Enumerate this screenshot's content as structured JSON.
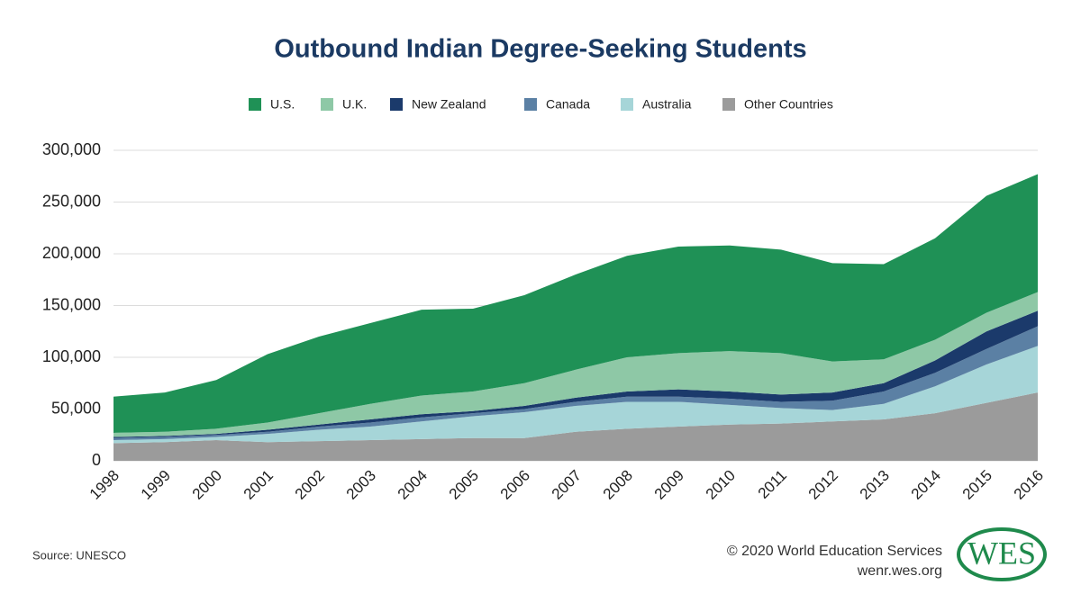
{
  "chart_data": {
    "type": "stacked-area",
    "title": "Outbound Indian Degree-Seeking Students",
    "categories": [
      "1998",
      "1999",
      "2000",
      "2001",
      "2002",
      "2003",
      "2004",
      "2005",
      "2006",
      "2007",
      "2008",
      "2009",
      "2010",
      "2011",
      "2012",
      "2013",
      "2014",
      "2015",
      "2016"
    ],
    "series": [
      {
        "name": "U.S.",
        "color": "#1f9156",
        "values": [
          35000,
          38000,
          47000,
          66000,
          74000,
          78000,
          83000,
          80000,
          85000,
          92000,
          98000,
          103000,
          102000,
          100000,
          95000,
          92000,
          98000,
          113000,
          114000
        ]
      },
      {
        "name": "U.K.",
        "color": "#8ec8a6",
        "values": [
          4000,
          4000,
          5000,
          7000,
          11000,
          15000,
          18000,
          19000,
          22000,
          27000,
          33000,
          35000,
          39000,
          40000,
          30000,
          23000,
          20000,
          18000,
          18000
        ]
      },
      {
        "name": "New Zealand",
        "color": "#1b3a6b",
        "values": [
          1000,
          1000,
          1000,
          2000,
          2000,
          3000,
          3000,
          2000,
          3000,
          4000,
          5000,
          7000,
          7000,
          7000,
          8000,
          8000,
          12000,
          17000,
          15000
        ]
      },
      {
        "name": "Canada",
        "color": "#5b80a4",
        "values": [
          2000,
          2000,
          2000,
          2000,
          3000,
          4000,
          4000,
          3000,
          3000,
          4000,
          5000,
          5000,
          6000,
          6000,
          9000,
          12000,
          13000,
          15000,
          19000
        ]
      },
      {
        "name": "Australia",
        "color": "#a6d5d8",
        "values": [
          3000,
          3000,
          3000,
          8000,
          11000,
          13000,
          17000,
          21000,
          25000,
          25000,
          26000,
          24000,
          19000,
          15000,
          11000,
          15000,
          26000,
          37000,
          45000
        ]
      },
      {
        "name": "Other Countries",
        "color": "#9b9b9b",
        "values": [
          17000,
          18000,
          20000,
          18000,
          19000,
          20000,
          21000,
          22000,
          22000,
          28000,
          31000,
          33000,
          35000,
          36000,
          38000,
          40000,
          46000,
          56000,
          66000
        ]
      }
    ],
    "ylim": [
      0,
      300000
    ],
    "yticks": [
      0,
      {
        "value": 50000,
        "label": "50,000"
      },
      {
        "value": 100000,
        "label": "100,000"
      },
      {
        "value": 150000,
        "label": "150,000"
      },
      {
        "value": 200000,
        "label": "200,000"
      },
      {
        "value": 250000,
        "label": "250,000"
      },
      {
        "value": 300000,
        "label": "300,000"
      }
    ],
    "grid": true,
    "legend": "top",
    "source": "Source: UNESCO",
    "copyright": "© 2020 World Education Services",
    "website": "wenr.wes.org",
    "logo": "WES"
  }
}
